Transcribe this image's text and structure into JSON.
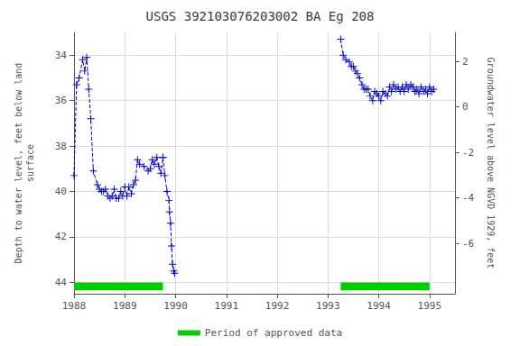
{
  "chart_data": {
    "type": "line",
    "title": "USGS 392103076203002 BA Eg 208",
    "ylabel": "Depth to water level, feet below land\nsurface",
    "y2label": "Groundwater level above NGVD 1929, feet",
    "xlim": [
      1988.0,
      1995.5
    ],
    "xticks": [
      1988,
      1989,
      1990,
      1991,
      1992,
      1993,
      1994,
      1995
    ],
    "ylim": [
      44.5,
      33.0
    ],
    "yticks": [
      34.0,
      36.0,
      38.0,
      40.0,
      42.0,
      44.0
    ],
    "y2lim": [
      -8.22,
      3.28
    ],
    "y2ticks": [
      2.0,
      0.0,
      -2.0,
      -4.0,
      -6.0
    ],
    "grid": true,
    "legend": "bottom",
    "series": [
      {
        "color": "#0000CC",
        "marker": "+",
        "line_style": "dashed",
        "x": [
          1988.0,
          1988.05,
          1988.1,
          1988.17,
          1988.21,
          1988.25,
          1988.29,
          1988.33,
          1988.38,
          1988.46,
          1988.5,
          1988.54,
          1988.58,
          1988.62,
          1988.67,
          1988.71,
          1988.75,
          1988.79,
          1988.83,
          1988.88,
          1988.92,
          1988.96,
          1989.0,
          1989.04,
          1989.08,
          1989.13,
          1989.17,
          1989.21,
          1989.25,
          1989.29,
          1989.38,
          1989.46,
          1989.5,
          1989.54,
          1989.58,
          1989.63,
          1989.67,
          1989.71,
          1989.75
        ],
        "values": [
          39.3,
          35.3,
          35.0,
          34.2,
          34.7,
          34.1,
          35.5,
          36.8,
          39.1,
          39.7,
          39.9,
          40.0,
          40.0,
          39.9,
          40.2,
          40.3,
          40.2,
          39.9,
          40.3,
          40.3,
          40.0,
          40.2,
          39.8,
          40.2,
          39.8,
          40.1,
          39.7,
          39.5,
          38.6,
          38.8,
          38.9,
          39.1,
          39.0,
          38.6,
          38.8,
          38.5,
          38.9,
          39.2,
          38.5
        ]
      },
      {
        "color": "#0000CC",
        "marker": "+",
        "line_style": "dashed",
        "x": [
          1989.75,
          1989.79,
          1989.83,
          1989.87,
          1989.88,
          1989.9,
          1989.92,
          1989.94,
          1989.96,
          1989.98
        ],
        "values": [
          38.5,
          39.3,
          40.0,
          40.4,
          40.9,
          41.4,
          42.4,
          43.2,
          43.5,
          43.6
        ]
      },
      {
        "color": "#0000CC",
        "marker": "+",
        "line_style": "dashed",
        "x": [
          1993.25,
          1993.3,
          1993.35,
          1993.42,
          1993.46,
          1993.5,
          1993.54,
          1993.58,
          1993.62,
          1993.67,
          1993.71,
          1993.75,
          1993.79,
          1993.83,
          1993.88,
          1993.92,
          1993.96,
          1994.0,
          1994.04,
          1994.08,
          1994.13,
          1994.17,
          1994.21,
          1994.25,
          1994.29,
          1994.33,
          1994.38,
          1994.42,
          1994.46,
          1994.5,
          1994.54,
          1994.58,
          1994.63,
          1994.67,
          1994.71,
          1994.75,
          1994.79,
          1994.83,
          1994.88,
          1994.92,
          1994.96,
          1995.0,
          1995.04,
          1995.08
        ],
        "values": [
          33.3,
          34.0,
          34.2,
          34.3,
          34.5,
          34.5,
          34.7,
          34.8,
          35.0,
          35.3,
          35.5,
          35.5,
          35.5,
          35.8,
          36.0,
          35.6,
          35.7,
          35.8,
          36.0,
          35.6,
          35.7,
          35.8,
          35.4,
          35.6,
          35.3,
          35.5,
          35.4,
          35.6,
          35.4,
          35.6,
          35.3,
          35.5,
          35.3,
          35.4,
          35.6,
          35.5,
          35.7,
          35.4,
          35.6,
          35.5,
          35.7,
          35.4,
          35.6,
          35.5
        ]
      }
    ],
    "periods": {
      "name": "Period of approved data",
      "color": "#00cc00",
      "ranges": [
        [
          1988.0,
          1989.75
        ],
        [
          1993.25,
          1995.0
        ]
      ],
      "y_bottom": 44.0,
      "y_top": 44.35
    }
  }
}
